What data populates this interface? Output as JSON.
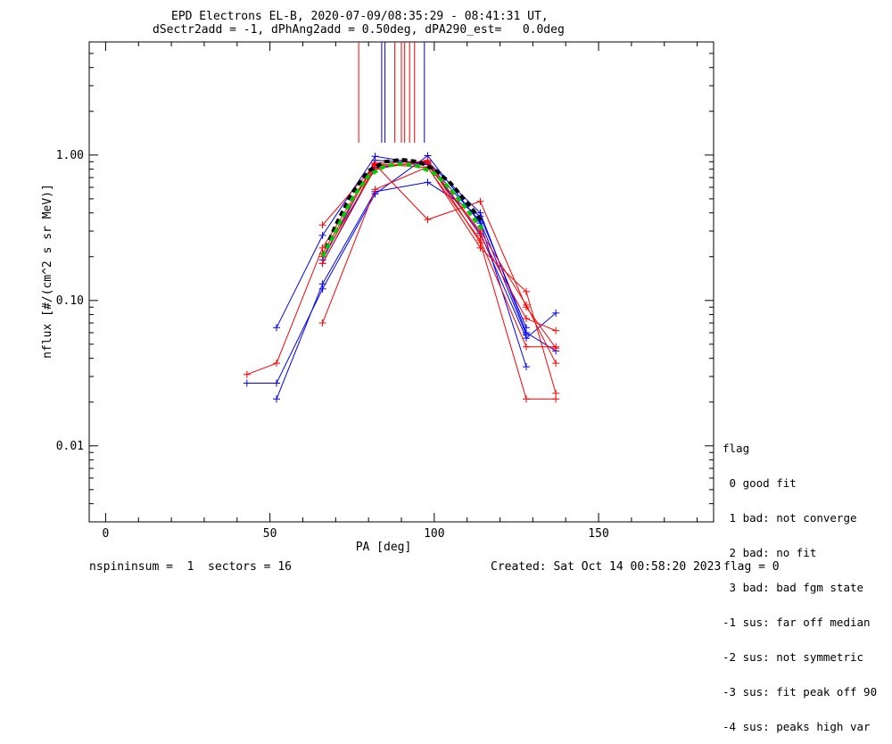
{
  "title": {
    "line1": "EPD Electrons EL-B, 2020-07-09/08:35:29 - 08:41:31 UT,",
    "line2": "dSectr2add = -1, dPhAng2add = 0.50deg, dPA290_est=   0.0deg"
  },
  "footer": {
    "left": "nspininsum =  1  sectors = 16",
    "created": "Created: Sat Oct 14 00:58:20 2023",
    "flag": "flag = 0"
  },
  "legend": {
    "title": "flag",
    "items": [
      " 0 good fit",
      " 1 bad: not converge",
      " 2 bad: no fit",
      " 3 bad: bad fgm state",
      "-1 sus: far off median",
      "-2 sus: not symmetric",
      "-3 sus: fit peak off 90",
      "-4 sus: peaks high var"
    ]
  },
  "chart_data": {
    "type": "line",
    "xlabel": "PA [deg]",
    "ylabel": "nflux [#/(cm^2 s sr MeV)]",
    "xlim": [
      -5,
      185
    ],
    "ylim": [
      0.003,
      6
    ],
    "yscale": "log",
    "xticks": [
      0,
      50,
      100,
      150
    ],
    "xtick_labels": [
      "0",
      "50",
      "100",
      "150"
    ],
    "yticks": [
      0.01,
      0.1,
      1.0
    ],
    "ytick_labels": [
      "0.01",
      "0.10",
      "1.00"
    ],
    "colors": {
      "blue": "#0000ff",
      "red": "#ff0000",
      "black": "#000000",
      "green": "#00cc00"
    },
    "series": [
      {
        "color": "blue",
        "x": [
          43,
          52,
          66,
          82,
          98,
          114,
          128
        ],
        "y": [
          0.027,
          0.027,
          0.12,
          0.54,
          0.99,
          0.34,
          0.035
        ]
      },
      {
        "color": "blue",
        "x": [
          52,
          66,
          82,
          98,
          114,
          128,
          137
        ],
        "y": [
          0.065,
          0.28,
          0.98,
          0.86,
          0.29,
          0.055,
          0.082
        ]
      },
      {
        "color": "blue",
        "x": [
          52,
          66,
          82,
          98,
          114,
          128
        ],
        "y": [
          0.021,
          0.13,
          0.56,
          0.65,
          0.38,
          0.065
        ]
      },
      {
        "color": "blue",
        "x": [
          66,
          82,
          98,
          114,
          128,
          137
        ],
        "y": [
          0.18,
          0.82,
          0.9,
          0.4,
          0.06,
          0.045
        ]
      },
      {
        "color": "blue",
        "x": [
          66,
          82,
          98,
          114,
          128
        ],
        "y": [
          0.19,
          0.92,
          0.88,
          0.35,
          0.058
        ]
      },
      {
        "color": "red",
        "x": [
          43,
          52,
          66,
          82,
          98,
          114,
          128,
          137
        ],
        "y": [
          0.031,
          0.037,
          0.23,
          0.88,
          0.9,
          0.25,
          0.021,
          0.021
        ]
      },
      {
        "color": "red",
        "x": [
          66,
          82,
          98,
          114,
          128,
          137
        ],
        "y": [
          0.33,
          0.86,
          0.36,
          0.48,
          0.09,
          0.047
        ]
      },
      {
        "color": "red",
        "x": [
          66,
          82,
          98,
          114,
          128,
          137
        ],
        "y": [
          0.07,
          0.58,
          0.83,
          0.23,
          0.115,
          0.023
        ]
      },
      {
        "color": "red",
        "x": [
          66,
          82,
          98,
          114,
          128,
          137
        ],
        "y": [
          0.2,
          0.8,
          0.92,
          0.28,
          0.075,
          0.062
        ]
      },
      {
        "color": "red",
        "x": [
          66,
          82,
          98,
          114,
          128,
          137
        ],
        "y": [
          0.21,
          0.87,
          0.82,
          0.26,
          0.048,
          0.048
        ]
      },
      {
        "color": "red",
        "x": [
          66,
          82,
          98,
          114,
          128,
          137
        ],
        "y": [
          0.18,
          0.85,
          0.87,
          0.3,
          0.093,
          0.037
        ]
      }
    ],
    "fits": [
      {
        "color": "black",
        "dash": true,
        "x": [
          66,
          70,
          75,
          80,
          85,
          90,
          95,
          100,
          105,
          110,
          115
        ],
        "y": [
          0.2,
          0.33,
          0.55,
          0.78,
          0.9,
          0.93,
          0.9,
          0.8,
          0.64,
          0.47,
          0.34
        ]
      },
      {
        "color": "green",
        "dash": true,
        "x": [
          66,
          70,
          75,
          80,
          85,
          90,
          95,
          100,
          105,
          110,
          115
        ],
        "y": [
          0.2,
          0.3,
          0.5,
          0.72,
          0.84,
          0.87,
          0.84,
          0.75,
          0.58,
          0.42,
          0.3
        ]
      }
    ],
    "vlines": [
      {
        "color": "red",
        "x": 77
      },
      {
        "color": "blue",
        "x": 84
      },
      {
        "color": "blue",
        "x": 85
      },
      {
        "color": "red",
        "x": 88
      },
      {
        "color": "red",
        "x": 90
      },
      {
        "color": "red",
        "x": 91
      },
      {
        "color": "red",
        "x": 92.5
      },
      {
        "color": "red",
        "x": 94
      },
      {
        "color": "blue",
        "x": 97
      }
    ]
  }
}
